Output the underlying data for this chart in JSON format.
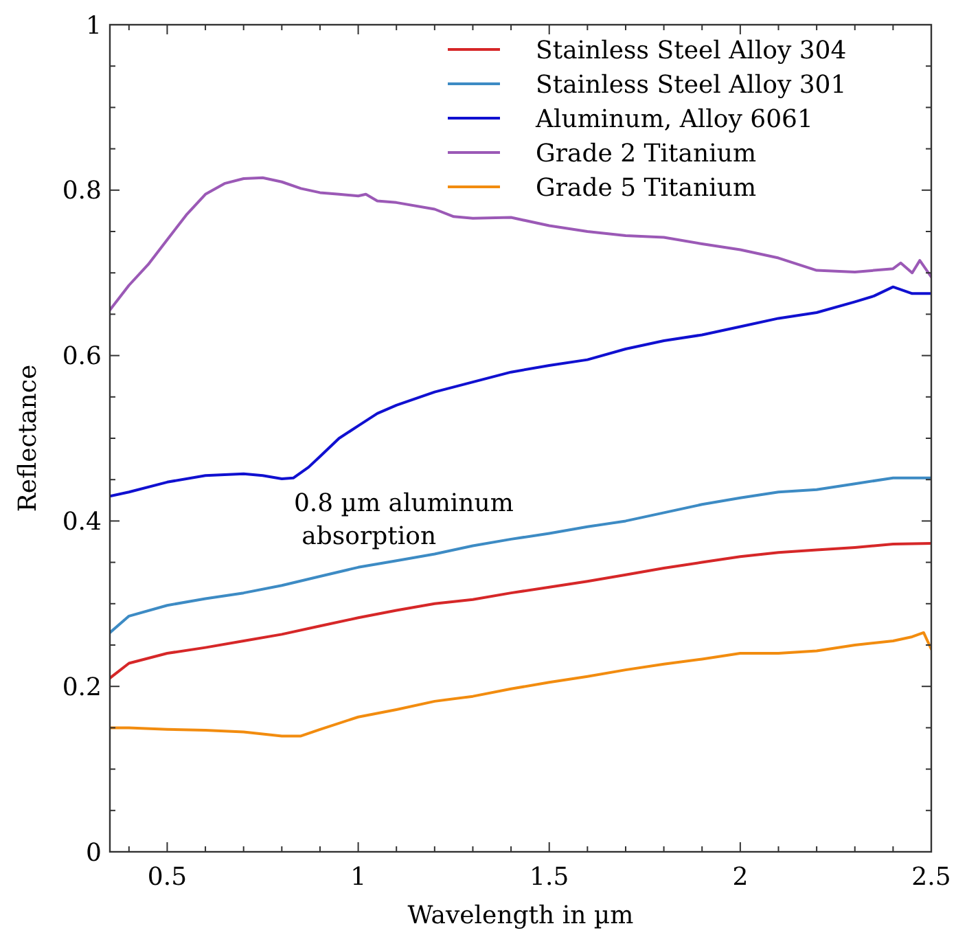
{
  "chart_data": {
    "type": "line",
    "xlabel": "Wavelength in µm",
    "ylabel": "Reflectance",
    "xlim": [
      0.35,
      2.5
    ],
    "ylim": [
      0,
      1
    ],
    "xticks": [
      {
        "value": 0.4,
        "label": null
      },
      0.5,
      {
        "value": 0.6,
        "label": null
      },
      {
        "value": 0.7,
        "label": null
      },
      {
        "value": 0.8,
        "label": null
      },
      {
        "value": 0.9,
        "label": null
      },
      1,
      {
        "value": 1.1,
        "label": null
      },
      {
        "value": 1.2,
        "label": null
      },
      {
        "value": 1.3,
        "label": null
      },
      {
        "value": 1.4,
        "label": null
      },
      1.5,
      {
        "value": 1.6,
        "label": null
      },
      {
        "value": 1.7,
        "label": null
      },
      {
        "value": 1.8,
        "label": null
      },
      {
        "value": 1.9,
        "label": null
      },
      2,
      {
        "value": 2.1,
        "label": null
      },
      {
        "value": 2.2,
        "label": null
      },
      {
        "value": 2.3,
        "label": null
      },
      {
        "value": 2.4,
        "label": null
      },
      2.5
    ],
    "yticks": [
      0,
      {
        "value": 0.05,
        "label": null
      },
      {
        "value": 0.1,
        "label": null
      },
      {
        "value": 0.15,
        "label": null
      },
      0.2,
      {
        "value": 0.25,
        "label": null
      },
      {
        "value": 0.3,
        "label": null
      },
      {
        "value": 0.35,
        "label": null
      },
      0.4,
      {
        "value": 0.45,
        "label": null
      },
      {
        "value": 0.5,
        "label": null
      },
      {
        "value": 0.55,
        "label": null
      },
      0.6,
      {
        "value": 0.65,
        "label": null
      },
      {
        "value": 0.7,
        "label": null
      },
      {
        "value": 0.75,
        "label": null
      },
      0.8,
      {
        "value": 0.85,
        "label": null
      },
      {
        "value": 0.9,
        "label": null
      },
      {
        "value": 0.95,
        "label": null
      },
      1
    ],
    "grid": false,
    "legend": "top right",
    "line_style": "solid",
    "marker": "none",
    "annotations": [
      "0.8 µm aluminum\n absorption"
    ],
    "series": [
      {
        "name": "Stainless Steel Alloy 304",
        "color": "#d62728",
        "x": [
          0.35,
          0.4,
          0.5,
          0.6,
          0.7,
          0.8,
          0.9,
          1.0,
          1.1,
          1.2,
          1.3,
          1.4,
          1.5,
          1.6,
          1.7,
          1.8,
          1.9,
          2.0,
          2.1,
          2.2,
          2.3,
          2.4,
          2.5
        ],
        "values": [
          0.21,
          0.228,
          0.24,
          0.247,
          0.255,
          0.263,
          0.273,
          0.283,
          0.292,
          0.3,
          0.305,
          0.313,
          0.32,
          0.327,
          0.335,
          0.343,
          0.35,
          0.357,
          0.362,
          0.365,
          0.368,
          0.372,
          0.373
        ]
      },
      {
        "name": "Stainless Steel Alloy 301",
        "color": "#3d8bc4",
        "x": [
          0.35,
          0.4,
          0.5,
          0.6,
          0.7,
          0.8,
          0.9,
          1.0,
          1.1,
          1.2,
          1.3,
          1.4,
          1.5,
          1.6,
          1.7,
          1.8,
          1.9,
          2.0,
          2.1,
          2.2,
          2.3,
          2.4,
          2.5
        ],
        "values": [
          0.265,
          0.285,
          0.298,
          0.306,
          0.313,
          0.322,
          0.333,
          0.344,
          0.352,
          0.36,
          0.37,
          0.378,
          0.385,
          0.393,
          0.4,
          0.41,
          0.42,
          0.428,
          0.435,
          0.438,
          0.445,
          0.452,
          0.452
        ]
      },
      {
        "name": "Aluminum, Alloy 6061",
        "color": "#1010d0",
        "x": [
          0.35,
          0.4,
          0.5,
          0.6,
          0.7,
          0.75,
          0.8,
          0.83,
          0.87,
          0.9,
          0.95,
          1.0,
          1.05,
          1.1,
          1.2,
          1.3,
          1.4,
          1.5,
          1.6,
          1.7,
          1.8,
          1.9,
          2.0,
          2.1,
          2.2,
          2.3,
          2.35,
          2.4,
          2.45,
          2.5
        ],
        "values": [
          0.43,
          0.435,
          0.447,
          0.455,
          0.457,
          0.455,
          0.451,
          0.452,
          0.465,
          0.478,
          0.5,
          0.515,
          0.53,
          0.54,
          0.556,
          0.568,
          0.58,
          0.588,
          0.595,
          0.608,
          0.618,
          0.625,
          0.635,
          0.645,
          0.652,
          0.665,
          0.672,
          0.683,
          0.675,
          0.675
        ]
      },
      {
        "name": "Grade 2 Titanium",
        "color": "#9b59b6",
        "x": [
          0.35,
          0.4,
          0.45,
          0.5,
          0.55,
          0.6,
          0.65,
          0.7,
          0.75,
          0.8,
          0.85,
          0.9,
          0.95,
          1.0,
          1.02,
          1.05,
          1.1,
          1.2,
          1.25,
          1.3,
          1.4,
          1.5,
          1.6,
          1.7,
          1.8,
          1.9,
          2.0,
          2.1,
          2.2,
          2.3,
          2.35,
          2.4,
          2.42,
          2.45,
          2.47,
          2.5
        ],
        "values": [
          0.655,
          0.685,
          0.71,
          0.74,
          0.77,
          0.795,
          0.808,
          0.814,
          0.815,
          0.81,
          0.802,
          0.797,
          0.795,
          0.793,
          0.795,
          0.787,
          0.785,
          0.777,
          0.768,
          0.766,
          0.767,
          0.757,
          0.75,
          0.745,
          0.743,
          0.735,
          0.728,
          0.718,
          0.703,
          0.701,
          0.703,
          0.705,
          0.712,
          0.7,
          0.715,
          0.695
        ]
      },
      {
        "name": "Grade 5 Titanium",
        "color": "#f28c0f",
        "x": [
          0.35,
          0.4,
          0.5,
          0.6,
          0.7,
          0.8,
          0.85,
          0.9,
          1.0,
          1.1,
          1.2,
          1.3,
          1.4,
          1.5,
          1.6,
          1.7,
          1.8,
          1.9,
          2.0,
          2.1,
          2.2,
          2.3,
          2.4,
          2.45,
          2.48,
          2.5
        ],
        "values": [
          0.15,
          0.15,
          0.148,
          0.147,
          0.145,
          0.14,
          0.14,
          0.148,
          0.163,
          0.172,
          0.182,
          0.188,
          0.197,
          0.205,
          0.212,
          0.22,
          0.227,
          0.233,
          0.24,
          0.24,
          0.243,
          0.25,
          0.255,
          0.26,
          0.265,
          0.245
        ]
      }
    ]
  }
}
